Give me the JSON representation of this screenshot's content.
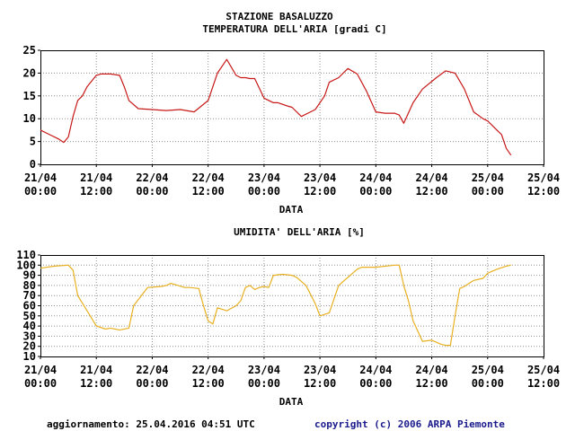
{
  "page": {
    "station": "STAZIONE BASALUZZO",
    "footer_update": "aggiornamento: 25.04.2016 04:51 UTC",
    "footer_copyright": "copyright (c) 2006 ARPA Piemonte"
  },
  "colors": {
    "temperature": "#c81818",
    "humidity": "#e8b020",
    "grid": "#909090",
    "copyright": "#1a1a8c"
  },
  "chart_data": [
    {
      "type": "line",
      "title": "TEMPERATURA DELL'ARIA [gradi C]",
      "xlabel": "DATA",
      "ylabel": "",
      "x_ticks": [
        [
          "21/04",
          "00:00"
        ],
        [
          "21/04",
          "12:00"
        ],
        [
          "22/04",
          "00:00"
        ],
        [
          "22/04",
          "12:00"
        ],
        [
          "23/04",
          "00:00"
        ],
        [
          "23/04",
          "12:00"
        ],
        [
          "24/04",
          "00:00"
        ],
        [
          "24/04",
          "12:00"
        ],
        [
          "25/04",
          "00:00"
        ],
        [
          "25/04",
          "12:00"
        ]
      ],
      "xlim": [
        "2016-04-21 00:00",
        "2016-04-25 12:00"
      ],
      "ylim": [
        0,
        25
      ],
      "y_ticks": [
        0,
        5,
        10,
        15,
        20,
        25
      ],
      "grid": true,
      "series": [
        {
          "color": "#c81818",
          "x": [
            "2016-04-21 00:00",
            "2016-04-21 02:00",
            "2016-04-21 04:00",
            "2016-04-21 05:00",
            "2016-04-21 06:00",
            "2016-04-21 07:00",
            "2016-04-21 08:00",
            "2016-04-21 09:00",
            "2016-04-21 10:00",
            "2016-04-21 12:00",
            "2016-04-21 13:00",
            "2016-04-21 15:00",
            "2016-04-21 17:00",
            "2016-04-21 18:00",
            "2016-04-21 19:00",
            "2016-04-21 21:00",
            "2016-04-22 00:00",
            "2016-04-22 03:00",
            "2016-04-22 06:00",
            "2016-04-22 09:00",
            "2016-04-22 12:00",
            "2016-04-22 14:00",
            "2016-04-22 16:00",
            "2016-04-22 18:00",
            "2016-04-22 19:00",
            "2016-04-22 20:00",
            "2016-04-22 21:00",
            "2016-04-22 22:00",
            "2016-04-23 00:00",
            "2016-04-23 02:00",
            "2016-04-23 03:00",
            "2016-04-23 05:00",
            "2016-04-23 06:00",
            "2016-04-23 08:00",
            "2016-04-23 11:00",
            "2016-04-23 13:00",
            "2016-04-23 14:00",
            "2016-04-23 16:00",
            "2016-04-23 18:00",
            "2016-04-23 20:00",
            "2016-04-23 22:00",
            "2016-04-24 00:00",
            "2016-04-24 02:00",
            "2016-04-24 04:00",
            "2016-04-24 05:00",
            "2016-04-24 06:00",
            "2016-04-24 08:00",
            "2016-04-24 10:00",
            "2016-04-24 13:00",
            "2016-04-24 15:00",
            "2016-04-24 17:00",
            "2016-04-24 19:00",
            "2016-04-24 21:00",
            "2016-04-24 23:00",
            "2016-04-25 00:00",
            "2016-04-25 02:00",
            "2016-04-25 03:00",
            "2016-04-25 04:00",
            "2016-04-25 05:00"
          ],
          "y": [
            7.5,
            6.5,
            5.5,
            4.8,
            6.0,
            10.5,
            14.0,
            15.0,
            17.0,
            19.5,
            19.8,
            19.8,
            19.5,
            17.0,
            14.0,
            12.2,
            12.0,
            11.8,
            12.0,
            11.5,
            14.0,
            20.0,
            23.0,
            19.5,
            19.0,
            19.0,
            18.8,
            18.8,
            14.5,
            13.5,
            13.5,
            12.8,
            12.5,
            10.5,
            12.0,
            15.0,
            18.0,
            19.0,
            21.0,
            19.8,
            16.0,
            11.5,
            11.2,
            11.2,
            10.8,
            9.0,
            13.5,
            16.5,
            19.0,
            20.5,
            20.0,
            16.5,
            11.5,
            10.0,
            9.5,
            7.5,
            6.5,
            3.5,
            2.0
          ]
        }
      ]
    },
    {
      "type": "line",
      "title": "UMIDITA' DELL'ARIA [%]",
      "xlabel": "DATA",
      "ylabel": "",
      "x_ticks": [
        [
          "21/04",
          "00:00"
        ],
        [
          "21/04",
          "12:00"
        ],
        [
          "22/04",
          "00:00"
        ],
        [
          "22/04",
          "12:00"
        ],
        [
          "23/04",
          "00:00"
        ],
        [
          "23/04",
          "12:00"
        ],
        [
          "24/04",
          "00:00"
        ],
        [
          "24/04",
          "12:00"
        ],
        [
          "25/04",
          "00:00"
        ],
        [
          "25/04",
          "12:00"
        ]
      ],
      "xlim": [
        "2016-04-21 00:00",
        "2016-04-25 12:00"
      ],
      "ylim": [
        10,
        110
      ],
      "y_ticks": [
        10,
        20,
        30,
        40,
        50,
        60,
        70,
        80,
        90,
        100,
        110
      ],
      "grid": true,
      "series": [
        {
          "color": "#e8b020",
          "x": [
            "2016-04-21 00:00",
            "2016-04-21 03:00",
            "2016-04-21 06:00",
            "2016-04-21 07:00",
            "2016-04-21 08:00",
            "2016-04-21 10:00",
            "2016-04-21 12:00",
            "2016-04-21 14:00",
            "2016-04-21 15:00",
            "2016-04-21 17:00",
            "2016-04-21 19:00",
            "2016-04-21 20:00",
            "2016-04-21 23:00",
            "2016-04-22 02:00",
            "2016-04-22 03:00",
            "2016-04-22 04:00",
            "2016-04-22 07:00",
            "2016-04-22 08:00",
            "2016-04-22 10:00",
            "2016-04-22 11:00",
            "2016-04-22 12:00",
            "2016-04-22 13:00",
            "2016-04-22 14:00",
            "2016-04-22 16:00",
            "2016-04-22 18:00",
            "2016-04-22 19:00",
            "2016-04-22 20:00",
            "2016-04-22 21:00",
            "2016-04-22 22:00",
            "2016-04-22 23:00",
            "2016-04-23 00:00",
            "2016-04-23 01:00",
            "2016-04-23 02:00",
            "2016-04-23 04:00",
            "2016-04-23 06:00",
            "2016-04-23 07:00",
            "2016-04-23 09:00",
            "2016-04-23 11:00",
            "2016-04-23 12:00",
            "2016-04-23 14:00",
            "2016-04-23 16:00",
            "2016-04-23 18:00",
            "2016-04-23 20:00",
            "2016-04-23 21:00",
            "2016-04-24 00:00",
            "2016-04-24 04:00",
            "2016-04-24 05:00",
            "2016-04-24 06:00",
            "2016-04-24 07:00",
            "2016-04-24 08:00",
            "2016-04-24 10:00",
            "2016-04-24 12:00",
            "2016-04-24 14:00",
            "2016-04-24 15:00",
            "2016-04-24 16:00",
            "2016-04-24 17:00",
            "2016-04-24 18:00",
            "2016-04-24 19:00",
            "2016-04-24 21:00",
            "2016-04-24 23:00",
            "2016-04-25 00:00",
            "2016-04-25 02:00",
            "2016-04-25 04:00",
            "2016-04-25 05:00"
          ],
          "y": [
            97,
            99,
            100,
            95,
            70,
            55,
            40,
            37,
            38,
            36,
            38,
            60,
            78,
            79,
            80,
            82,
            78,
            78,
            77,
            60,
            45,
            42,
            58,
            55,
            60,
            65,
            78,
            80,
            76,
            78,
            79,
            78,
            90,
            91,
            90,
            88,
            80,
            62,
            50,
            53,
            80,
            88,
            96,
            98,
            98,
            100,
            100,
            80,
            65,
            45,
            25,
            26,
            22,
            21,
            21,
            50,
            77,
            79,
            85,
            87,
            92,
            96,
            99,
            100
          ]
        }
      ]
    }
  ]
}
